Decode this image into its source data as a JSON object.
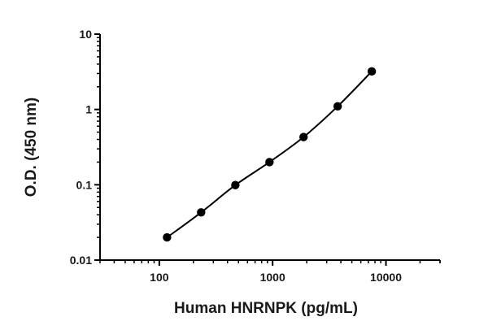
{
  "chart_data": {
    "type": "scatter",
    "title": "",
    "xlabel": "Human HNRNPK (pg/mL)",
    "ylabel": "O.D. (450 nm)",
    "x_scale": "log",
    "y_scale": "log",
    "xlim": [
      30,
      30000
    ],
    "ylim": [
      0.01,
      10
    ],
    "x_ticks": [
      100,
      1000,
      10000
    ],
    "x_tick_labels": [
      "100",
      "1000",
      "10000"
    ],
    "y_ticks": [
      0.01,
      0.1,
      1,
      10
    ],
    "y_tick_labels": [
      "0.01",
      "0.1",
      "1",
      "10"
    ],
    "grid": false,
    "legend": "none",
    "series": [
      {
        "x": [
          117,
          234,
          469,
          938,
          1875,
          3750,
          7500
        ],
        "y": [
          0.02,
          0.043,
          0.099,
          0.2,
          0.43,
          1.1,
          3.2
        ],
        "marker": "circle",
        "fit_curve": true,
        "color": "#000000"
      }
    ]
  }
}
